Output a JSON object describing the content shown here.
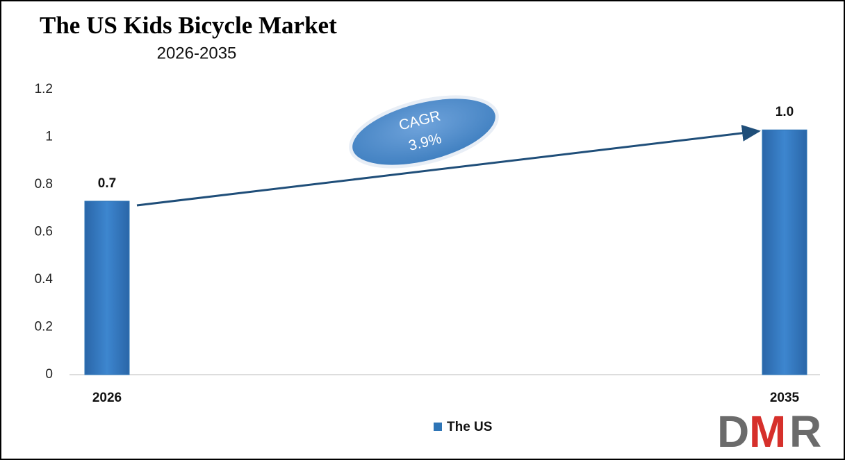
{
  "chart_data": {
    "type": "bar",
    "title": "The US Kids Bicycle Market",
    "subtitle": "2026-2035",
    "categories": [
      "2026",
      "2035"
    ],
    "series": [
      {
        "name": "The US",
        "color": "#2e75b6",
        "values": [
          0.73,
          1.03
        ],
        "value_labels": [
          "0.7",
          "1.0"
        ]
      }
    ],
    "ylim": [
      0,
      1.2
    ],
    "yticks": [
      0,
      0.2,
      0.4,
      0.6,
      0.8,
      1,
      1.2
    ],
    "grid": false,
    "legend": "bottom",
    "cagr_label": "CAGR",
    "cagr_value": "3.9%"
  },
  "logo": [
    "D",
    "M",
    "R"
  ]
}
